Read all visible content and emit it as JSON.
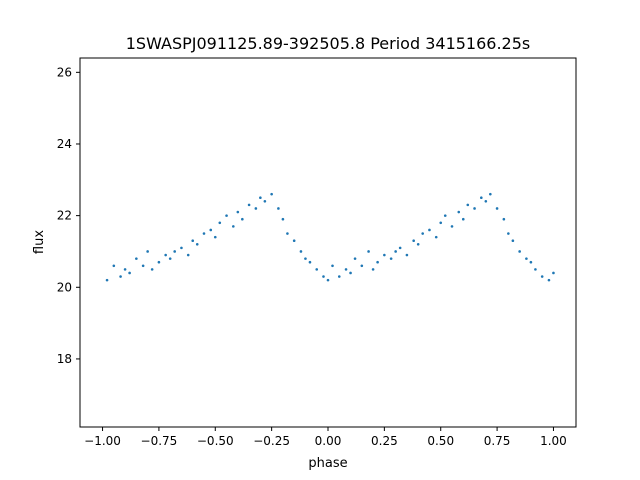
{
  "chart_data": {
    "type": "scatter",
    "title": "1SWASPJ091125.89-392505.8 Period 3415166.25s",
    "xlabel": "phase",
    "ylabel": "flux",
    "xlim": [
      -1.1,
      1.1
    ],
    "ylim": [
      16.1,
      26.4
    ],
    "xticks": [
      -1.0,
      -0.75,
      -0.5,
      -0.25,
      0.0,
      0.25,
      0.5,
      0.75,
      1.0
    ],
    "xtick_labels": [
      "−1.00",
      "−0.75",
      "−0.50",
      "−0.25",
      "0.00",
      "0.25",
      "0.50",
      "0.75",
      "1.00"
    ],
    "yticks": [
      18,
      20,
      22,
      24,
      26
    ],
    "ytick_labels": [
      "18",
      "20",
      "22",
      "24",
      "26"
    ],
    "grid": false,
    "legend": "none",
    "marker_color": "#1f77b4",
    "series": [
      {
        "x": [
          -0.98,
          -0.95,
          -0.92,
          -0.9,
          -0.88,
          -0.85,
          -0.82,
          -0.8,
          -0.78,
          -0.75,
          -0.72,
          -0.7,
          -0.68,
          -0.65,
          -0.62,
          -0.6,
          -0.58,
          -0.55,
          -0.52,
          -0.5,
          -0.48,
          -0.45,
          -0.42,
          -0.4,
          -0.38,
          -0.35,
          -0.32,
          -0.3,
          -0.28,
          -0.25,
          -0.22,
          -0.2,
          -0.18,
          -0.15,
          -0.12,
          -0.1,
          -0.08,
          -0.05,
          -0.02,
          0.0,
          0.02,
          0.05,
          0.08,
          0.1,
          0.12,
          0.15,
          0.18,
          0.2,
          0.22,
          0.25,
          0.28,
          0.3,
          0.32,
          0.35,
          0.38,
          0.4,
          0.42,
          0.45,
          0.48,
          0.5,
          0.52,
          0.55,
          0.58,
          0.6,
          0.62,
          0.65,
          0.68,
          0.7,
          0.72,
          0.75,
          0.78,
          0.8,
          0.82,
          0.85,
          0.88,
          0.9,
          0.92,
          0.95,
          0.98,
          1.0
        ],
        "y": [
          20.2,
          20.6,
          20.3,
          20.5,
          20.4,
          20.8,
          20.6,
          21.0,
          20.5,
          20.7,
          20.9,
          20.8,
          21.0,
          21.1,
          20.9,
          21.3,
          21.2,
          21.5,
          21.6,
          21.4,
          21.8,
          22.0,
          21.7,
          22.1,
          21.9,
          22.3,
          22.2,
          22.5,
          22.4,
          22.6,
          22.2,
          21.9,
          21.5,
          21.3,
          21.0,
          20.8,
          20.7,
          20.5,
          20.3,
          20.2,
          20.6,
          20.3,
          20.5,
          20.4,
          20.8,
          20.6,
          21.0,
          20.5,
          20.7,
          20.9,
          20.8,
          21.0,
          21.1,
          20.9,
          21.3,
          21.2,
          21.5,
          21.6,
          21.4,
          21.8,
          22.0,
          21.7,
          22.1,
          21.9,
          22.3,
          22.2,
          22.5,
          22.4,
          22.6,
          22.2,
          21.9,
          21.5,
          21.3,
          21.0,
          20.8,
          20.7,
          20.5,
          20.3,
          20.2,
          20.4
        ]
      }
    ]
  }
}
